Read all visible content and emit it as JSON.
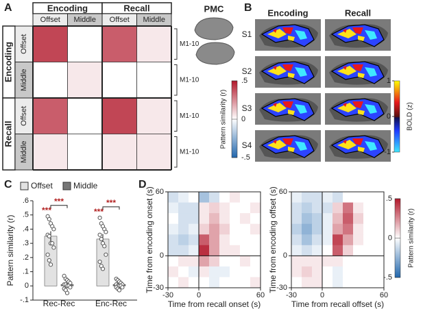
{
  "panel_labels": [
    "A",
    "B",
    "C",
    "D"
  ],
  "pmc": "PMC",
  "panel_b": {
    "columns": [
      "Encoding",
      "Recall"
    ],
    "rows": [
      "S1",
      "S2",
      "S3",
      "S4"
    ],
    "colorbar": {
      "title": "BOLD (z)",
      "ticks": [
        1,
        0,
        -1
      ]
    }
  },
  "chart_data": [
    {
      "type": "heatmap",
      "col_groups": [
        "Encoding",
        "Recall"
      ],
      "col_labels": [
        "Offset",
        "Middle",
        "Offset",
        "Middle"
      ],
      "row_groups": [
        "Encoding",
        "Recall"
      ],
      "row_labels": [
        "Offset",
        "Middle",
        "Offset",
        "Middle"
      ],
      "side_labels": [
        "M1-10",
        "M1-10",
        "M1-10",
        "M1-10"
      ],
      "values": [
        [
          0.4,
          0.0,
          0.35,
          0.05
        ],
        [
          0.0,
          0.05,
          0.0,
          0.0
        ],
        [
          0.35,
          0.0,
          0.4,
          0.05
        ],
        [
          0.05,
          0.0,
          0.05,
          0.05
        ]
      ],
      "clim": [
        -0.5,
        0.5
      ],
      "colorbar": {
        "title": "Pattern similarity (r)",
        "ticks": [
          {
            "value": 0.5,
            "label": ".5"
          },
          0,
          {
            "value": -0.5,
            "label": "-.5"
          }
        ]
      }
    },
    {
      "type": "bar",
      "categories": [
        "Rec-Rec",
        "Enc-Rec"
      ],
      "ylabel": "Pattern similarity (r)",
      "ylim": [
        -0.1,
        0.6
      ],
      "yticks": [
        {
          "value": -0.1,
          "label": "-.1"
        },
        0,
        {
          "value": 0.1,
          "label": ".1"
        },
        {
          "value": 0.2,
          "label": ".2"
        },
        {
          "value": 0.3,
          "label": ".3"
        },
        {
          "value": 0.4,
          "label": ".4"
        },
        {
          "value": 0.5,
          "label": ".5"
        },
        {
          "value": 0.6,
          "label": ".6"
        }
      ],
      "annotations": [
        "***",
        "***",
        "***",
        "***"
      ],
      "series": [
        {
          "name": "Offset",
          "color": "#e2e2e2",
          "values": [
            0.35,
            0.33
          ],
          "errors": [
            0.035,
            0.035
          ],
          "points": [
            [
              0.49,
              0.47,
              0.44,
              0.42,
              0.4,
              0.36,
              0.35,
              0.3,
              0.3,
              0.27,
              0.22,
              0.18,
              0.15
            ],
            [
              0.48,
              0.44,
              0.42,
              0.4,
              0.38,
              0.36,
              0.33,
              0.3,
              0.28,
              0.22,
              0.17,
              0.14,
              0.12
            ]
          ]
        },
        {
          "name": "Middle",
          "color": "#777777",
          "values": [
            0.01,
            0.01
          ],
          "errors": [
            0.01,
            0.01
          ],
          "points": [
            [
              0.07,
              0.05,
              0.04,
              0.03,
              0.02,
              0.01,
              0.01,
              0.0,
              0.0,
              -0.01,
              -0.02,
              -0.03,
              -0.05
            ],
            [
              0.05,
              0.04,
              0.03,
              0.02,
              0.01,
              0.01,
              0.0,
              0.0,
              0.0,
              -0.01,
              -0.01,
              -0.02,
              -0.03
            ]
          ]
        }
      ]
    },
    {
      "type": "heatmap",
      "xlabel": "Time from recall onset (s)",
      "ylabel": "Time from encoding onset (s)",
      "x": [
        -25,
        -15,
        -5,
        5,
        15,
        25,
        35,
        45,
        55
      ],
      "y": [
        55,
        45,
        35,
        25,
        15,
        5,
        -5,
        -15,
        -25
      ],
      "xlim": [
        -30,
        60
      ],
      "ylim": [
        -30,
        60
      ],
      "xticks": [
        -30,
        0,
        60
      ],
      "yticks": [
        -30,
        0,
        60
      ],
      "clim": [
        -0.5,
        0.5
      ],
      "values": [
        [
          -0.1,
          -0.05,
          0,
          -0.2,
          -0.1,
          0,
          0.05,
          0,
          0
        ],
        [
          -0.05,
          -0.1,
          -0.1,
          0.05,
          0.1,
          0.05,
          0,
          0,
          0.05
        ],
        [
          0,
          -0.1,
          -0.1,
          0.05,
          0.15,
          0.05,
          0,
          0.05,
          0
        ],
        [
          -0.05,
          -0.1,
          -0.05,
          0.1,
          0.2,
          0.1,
          0,
          0,
          0.05
        ],
        [
          -0.1,
          -0.15,
          -0.1,
          0.35,
          0.2,
          0.05,
          0,
          0,
          0
        ],
        [
          -0.1,
          -0.1,
          -0.05,
          0.45,
          0.2,
          0.05,
          0.05,
          0,
          0
        ],
        [
          0,
          0.05,
          0.05,
          0.2,
          0.1,
          0,
          0,
          0.05,
          0
        ],
        [
          0.05,
          0,
          -0.05,
          0.05,
          -0.05,
          -0.05,
          0,
          0,
          0
        ],
        [
          0,
          0.05,
          0,
          0,
          -0.05,
          0,
          0,
          0,
          0.05
        ]
      ]
    },
    {
      "type": "heatmap",
      "xlabel": "Time from recall offset (s)",
      "ylabel": "Time from encoding offset (s)",
      "x": [
        -25,
        -15,
        -5,
        5,
        15,
        25,
        35,
        45,
        55
      ],
      "y": [
        55,
        45,
        35,
        25,
        15,
        5,
        -5,
        -15,
        -25
      ],
      "xlim": [
        -30,
        60
      ],
      "ylim": [
        -30,
        60
      ],
      "xticks": [
        -30,
        0,
        60
      ],
      "yticks": [
        -30,
        0,
        60
      ],
      "clim": [
        -0.5,
        0.5
      ],
      "colorbar": {
        "title": "Pattern similarity (r)",
        "ticks": [
          {
            "value": 0.5,
            "label": ".5"
          },
          0,
          {
            "value": -0.5,
            "label": "-.5"
          }
        ]
      },
      "values": [
        [
          -0.05,
          -0.1,
          -0.1,
          -0.05,
          -0.1,
          0,
          0,
          0,
          0
        ],
        [
          -0.1,
          -0.15,
          -0.1,
          -0.1,
          0.1,
          0.3,
          0.05,
          0,
          0
        ],
        [
          -0.1,
          -0.2,
          -0.15,
          -0.05,
          0.15,
          0.35,
          0.1,
          0,
          0
        ],
        [
          -0.15,
          -0.25,
          -0.15,
          -0.05,
          0.2,
          0.3,
          0.05,
          0,
          0
        ],
        [
          -0.1,
          -0.2,
          -0.1,
          -0.05,
          0.4,
          0.2,
          0.05,
          0,
          0
        ],
        [
          -0.05,
          -0.1,
          -0.05,
          0,
          0.35,
          0.1,
          0,
          0,
          0
        ],
        [
          0.05,
          0.05,
          0.05,
          0.05,
          0.05,
          0,
          0,
          0,
          0
        ],
        [
          0.05,
          0.1,
          0.05,
          0,
          -0.05,
          0,
          0,
          0,
          0
        ],
        [
          0,
          0.05,
          0.05,
          0,
          -0.05,
          0,
          0,
          0,
          0
        ]
      ]
    }
  ]
}
